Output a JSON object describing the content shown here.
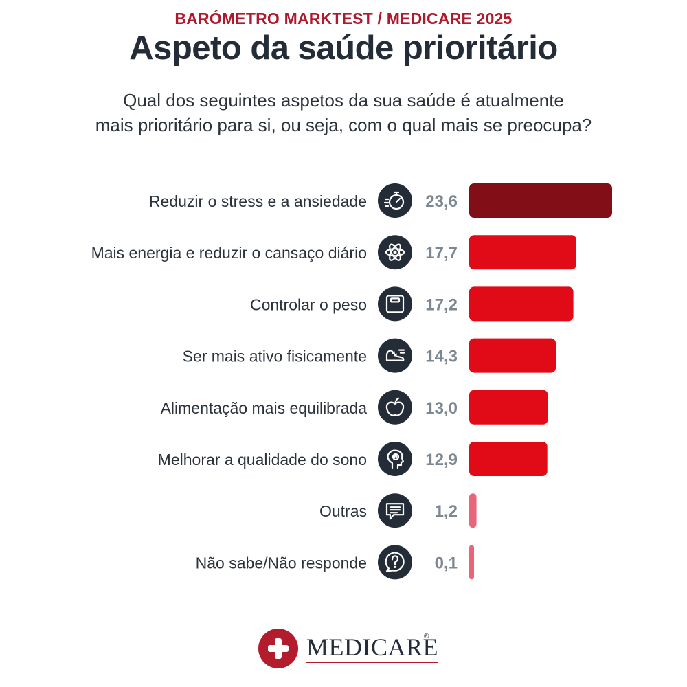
{
  "header": {
    "kicker": "BARÓMETRO MARKTEST / MEDICARE 2025",
    "title": "Aspeto da saúde prioritário",
    "question_line1": "Qual dos seguintes aspetos da sua saúde é atualmente",
    "question_line2": "mais prioritário para si, ou seja, com o qual mais se preocupa?"
  },
  "colors": {
    "top_bar": "#820f17",
    "main_bar": "#e10a17",
    "minor_bar": "#e8657c",
    "value_text": "#7d8791",
    "icon_bg": "#232c37",
    "brand": "#b31c2c"
  },
  "chart_data": {
    "type": "bar",
    "orientation": "horizontal",
    "categories": [
      "Reduzir o stress e a ansiedade",
      "Mais energia e reduzir o cansaço diário",
      "Controlar o peso",
      "Ser mais ativo fisicamente",
      "Alimentação mais equilibrada",
      "Melhorar a qualidade do sono",
      "Outras",
      "Não sabe/Não responde"
    ],
    "values": [
      23.6,
      17.7,
      17.2,
      14.3,
      13.0,
      12.9,
      1.2,
      0.1
    ],
    "value_labels": [
      "23,6",
      "17,7",
      "17,2",
      "14,3",
      "13,0",
      "12,9",
      "1,2",
      "0,1"
    ],
    "icons": [
      "stopwatch-icon",
      "atom-icon",
      "scale-icon",
      "sneaker-icon",
      "apple-icon",
      "head-mind-icon",
      "chat-icon",
      "question-bubble-icon"
    ],
    "grid": false,
    "legend": "none"
  },
  "brand": {
    "name": "MEDICARE",
    "registered": "®"
  }
}
